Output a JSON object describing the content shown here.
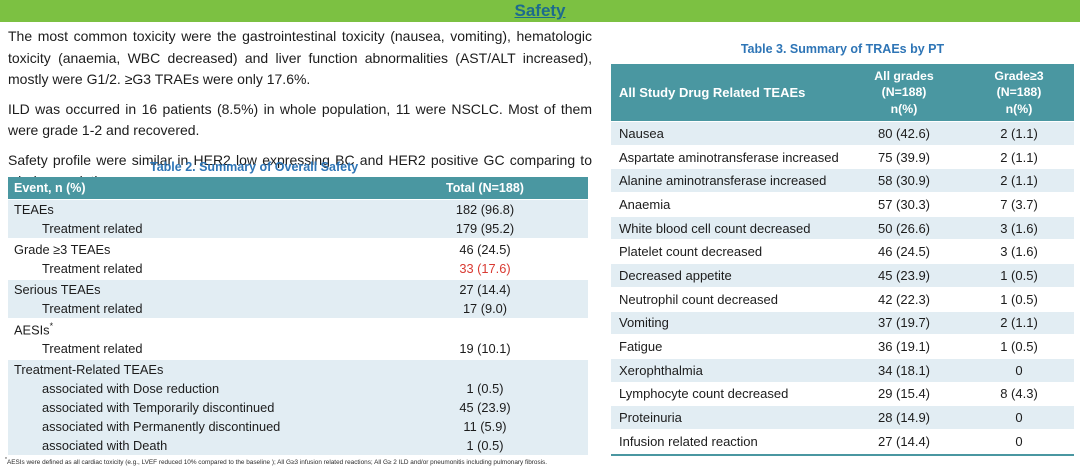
{
  "page": {
    "title": "Safety"
  },
  "colors": {
    "header_bar_green": "#7cc142",
    "safety_title": "#1d6b8d",
    "table_header_teal": "#4a97a1",
    "row_shaded_blue": "#e2edf3",
    "table_title_blue": "#2e75b6",
    "highlight_red": "#d93a32"
  },
  "left": {
    "paragraphs": [
      "The most common toxicity were the gastrointestinal toxicity (nausea, vomiting), hematologic toxicity (anaemia, WBC decreased) and liver function abnormalities (AST/ALT increased), mostly were G1/2.  ≥G3 TRAEs were only 17.6%.",
      "ILD was occurred in 16 patients (8.5%) in whole population, 11 were NSCLC. Most of them were grade 1-2 and recovered.",
      "Safety profile were similar in HER2 low expressing BC and HER2 positive GC comparing to whole population."
    ],
    "table2": {
      "title": "Table 2. Summary of Overall Safety",
      "header": {
        "col1": "Event, n (%)",
        "col2": "Total (N=188)"
      },
      "groups": [
        {
          "shaded": true,
          "rows": [
            {
              "label": "TEAEs",
              "value": "182 (96.8)"
            },
            {
              "label": "Treatment related",
              "indent": true,
              "value": "179 (95.2)"
            }
          ]
        },
        {
          "shaded": false,
          "rows": [
            {
              "label": "Grade ≥3 TEAEs",
              "value": "46 (24.5)"
            },
            {
              "label": "Treatment related",
              "indent": true,
              "value": "33 (17.6)",
              "red": true
            }
          ]
        },
        {
          "shaded": true,
          "rows": [
            {
              "label": "Serious TEAEs",
              "value": "27 (14.4)"
            },
            {
              "label": "Treatment related",
              "indent": true,
              "value": "17 (9.0)"
            }
          ]
        },
        {
          "shaded": false,
          "rows": [
            {
              "label": "AESIs",
              "sup": "*",
              "value": ""
            },
            {
              "label": "Treatment related",
              "indent": true,
              "value": "19 (10.1)"
            }
          ]
        },
        {
          "shaded": true,
          "rows": [
            {
              "label": "Treatment-Related TEAEs",
              "value": ""
            },
            {
              "label": "associated with Dose reduction",
              "indent": true,
              "value": "1 (0.5)"
            },
            {
              "label": "associated with Temporarily discontinued",
              "indent": true,
              "value": "45 (23.9)"
            },
            {
              "label": "associated with Permanently discontinued",
              "indent": true,
              "value": "11 (5.9)"
            },
            {
              "label": "associated with Death",
              "indent": true,
              "value": "1 (0.5)"
            }
          ]
        }
      ],
      "footnote_sup": "*",
      "footnote": "AESIs were defined as all cardiac toxicity (e.g., LVEF reduced 10% compared to the baseline ); All G≥3 infusion related reactions; All G≥ 2 ILD and/or pneumonitis including pulmonary fibrosis."
    }
  },
  "right": {
    "table3": {
      "title": "Table 3. Summary of TRAEs by PT",
      "header": {
        "col1": "All Study Drug Related TEAEs",
        "col2": "All grades\n(N=188)\nn(%)",
        "col3": "Grade≥3\n(N=188)\nn(%)"
      },
      "rows": [
        [
          "Nausea",
          "80 (42.6)",
          "2 (1.1)"
        ],
        [
          "Aspartate aminotransferase increased",
          "75 (39.9)",
          "2 (1.1)"
        ],
        [
          "Alanine aminotransferase increased",
          "58 (30.9)",
          "2 (1.1)"
        ],
        [
          "Anaemia",
          "57 (30.3)",
          "7 (3.7)"
        ],
        [
          "White blood cell count decreased",
          "50 (26.6)",
          "3 (1.6)"
        ],
        [
          "Platelet count decreased",
          "46 (24.5)",
          "3 (1.6)"
        ],
        [
          "Decreased appetite",
          "45 (23.9)",
          "1 (0.5)"
        ],
        [
          "Neutrophil count decreased",
          "42 (22.3)",
          "1 (0.5)"
        ],
        [
          "Vomiting",
          "37 (19.7)",
          "2 (1.1)"
        ],
        [
          "Fatigue",
          "36 (19.1)",
          "1 (0.5)"
        ],
        [
          "Xerophthalmia",
          "34 (18.1)",
          "0"
        ],
        [
          "Lymphocyte count decreased",
          "29 (15.4)",
          "8 (4.3)"
        ],
        [
          "Proteinuria",
          "28 (14.9)",
          "0"
        ],
        [
          "Infusion related reaction",
          "27 (14.4)",
          "0"
        ]
      ]
    }
  }
}
